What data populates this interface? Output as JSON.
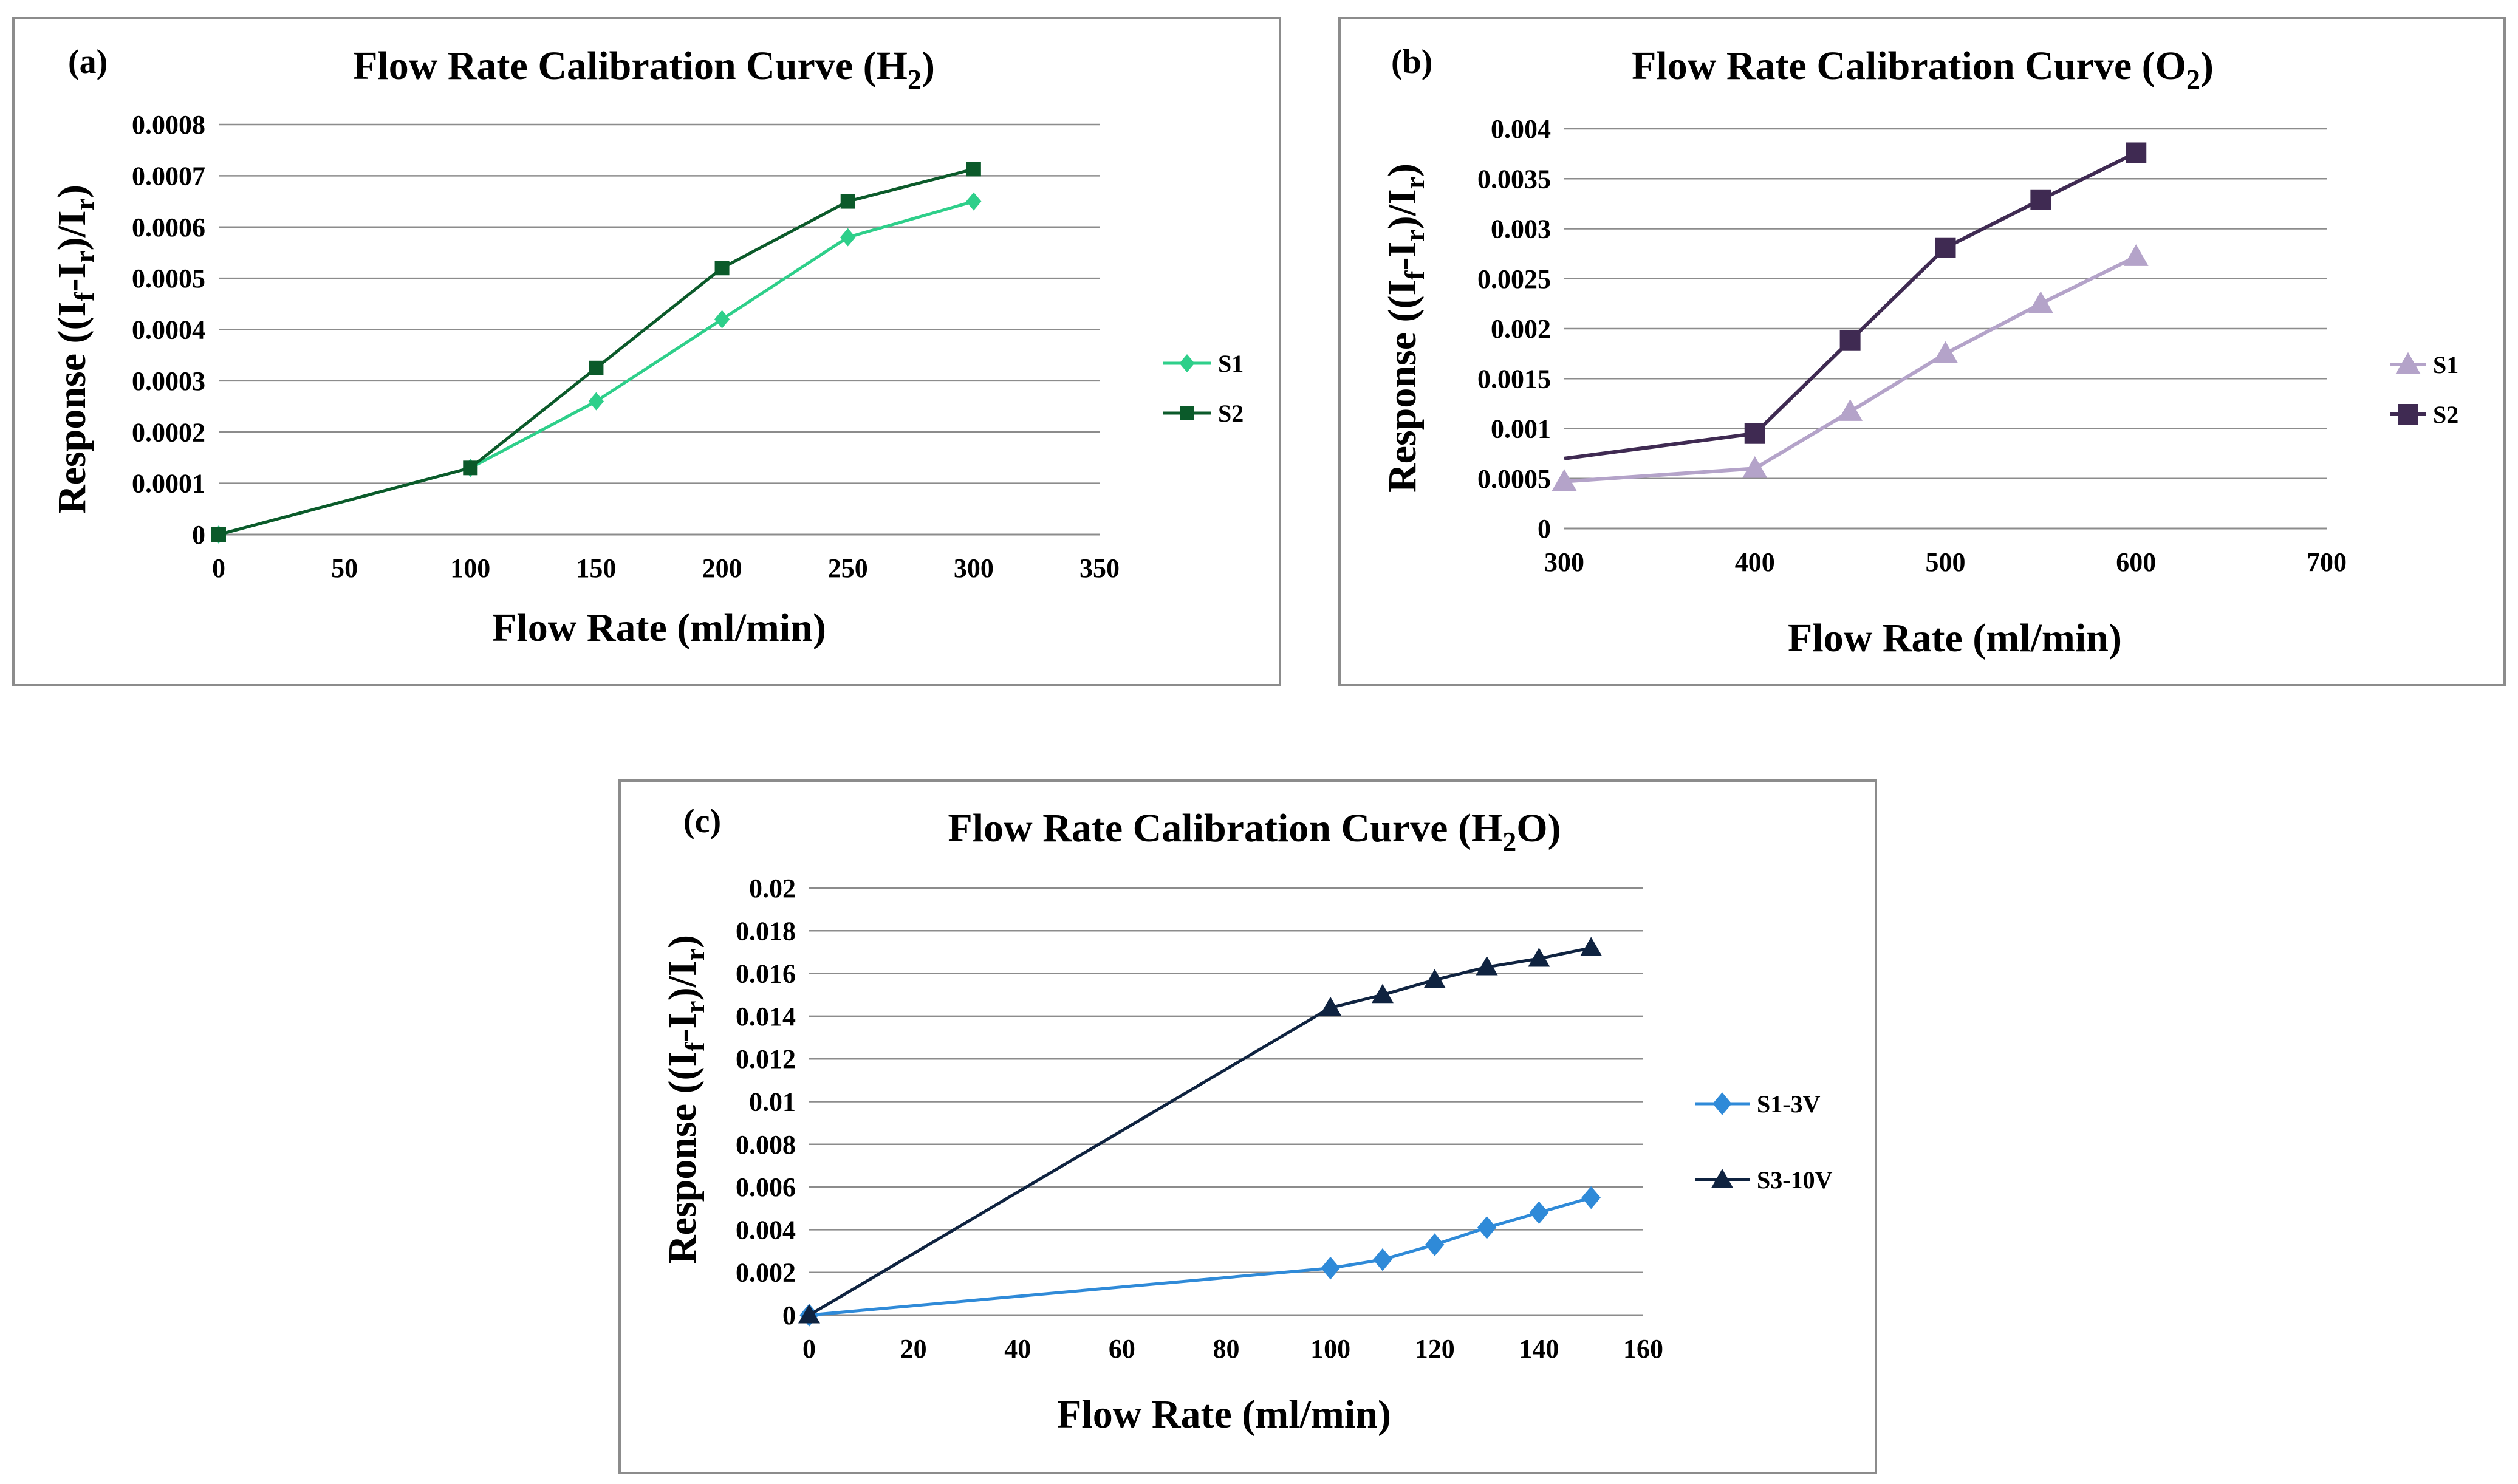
{
  "chart_data": [
    {
      "id": "a",
      "type": "line",
      "panel_label": "(a)",
      "title": "Flow Rate Calibration Curve (H",
      "title_sub": "2",
      "title_end": ")",
      "xlabel": "Flow Rate (ml/min)",
      "ylabel": {
        "pre": "Response ((I",
        "s1": "f",
        "mid": "-I",
        "s2": "r",
        "mid2": ")/I",
        "s3": "r",
        "end": ")"
      },
      "xlim": [
        0,
        350
      ],
      "ylim": [
        0,
        0.0008
      ],
      "xticks": [
        0,
        50,
        100,
        150,
        200,
        250,
        300,
        350
      ],
      "xtick_labels": [
        "0",
        "50",
        "100",
        "150",
        "200",
        "250",
        "300",
        "350"
      ],
      "yticks": [
        0,
        0.0001,
        0.0002,
        0.0003,
        0.0004,
        0.0005,
        0.0006,
        0.0007,
        0.0008
      ],
      "ytick_labels": [
        "0",
        "0.0001",
        "0.0002",
        "0.0003",
        "0.0004",
        "0.0005",
        "0.0006",
        "0.0007",
        "0.0008"
      ],
      "grid": true,
      "legend_position": "right",
      "series": [
        {
          "name": "S1",
          "color": "#2ecf8a",
          "marker": "diamond",
          "x": [
            0,
            100,
            150,
            200,
            250,
            300
          ],
          "y": [
            0,
            0.00013,
            0.00026,
            0.00042,
            0.00058,
            0.00065
          ]
        },
        {
          "name": "S2",
          "color": "#0b5a2a",
          "marker": "square",
          "x": [
            0,
            100,
            150,
            200,
            250,
            300
          ],
          "y": [
            0,
            0.00013,
            0.000325,
            0.00052,
            0.00065,
            0.000713
          ]
        }
      ]
    },
    {
      "id": "b",
      "type": "line",
      "panel_label": "(b)",
      "title": "Flow Rate Calibration Curve (O",
      "title_sub": "2",
      "title_end": ")",
      "xlabel": "Flow Rate (ml/min)",
      "ylabel": {
        "pre": "Response ((I",
        "s1": "f",
        "mid": "-I",
        "s2": "r",
        "mid2": ")/I",
        "s3": "r",
        "end": ")"
      },
      "xlim": [
        300,
        700
      ],
      "ylim": [
        0,
        0.004
      ],
      "xticks": [
        300,
        400,
        500,
        600,
        700
      ],
      "xtick_labels": [
        "300",
        "400",
        "500",
        "600",
        "700"
      ],
      "yticks": [
        0,
        0.0005,
        0.001,
        0.0015,
        0.002,
        0.0025,
        0.003,
        0.0035,
        0.004
      ],
      "ytick_labels": [
        "0",
        "0.0005",
        "0.001",
        "0.0015",
        "0.002",
        "0.0025",
        "0.003",
        "0.0035",
        "0.004"
      ],
      "grid": true,
      "legend_position": "right",
      "series": [
        {
          "name": "S1",
          "color": "#b4a3c9",
          "marker": "triangle",
          "x": [
            300,
            400,
            450,
            500,
            550,
            600
          ],
          "y": [
            0.00047,
            0.0006,
            0.00117,
            0.00175,
            0.00225,
            0.00272
          ]
        },
        {
          "name": "S2",
          "color": "#3f2a52",
          "marker": "square",
          "x": [
            300,
            400,
            450,
            500,
            550,
            600
          ],
          "y": [
            0.0007,
            0.00095,
            0.00188,
            0.00281,
            0.00329,
            0.00376
          ],
          "marker_skip_first": true
        }
      ]
    },
    {
      "id": "c",
      "type": "line",
      "panel_label": "(c)",
      "title": "Flow Rate Calibration Curve (H",
      "title_sub": "2",
      "title_end": "O)",
      "xlabel": "Flow Rate (ml/min)",
      "ylabel": {
        "pre": "Response ((I",
        "s1": "f",
        "mid": "-I",
        "s2": "r",
        "mid2": ")/I",
        "s3": "r",
        "end": ")"
      },
      "xlim": [
        0,
        160
      ],
      "ylim": [
        0,
        0.02
      ],
      "xticks": [
        0,
        20,
        40,
        60,
        80,
        100,
        120,
        140,
        160
      ],
      "xtick_labels": [
        "0",
        "20",
        "40",
        "60",
        "80",
        "100",
        "120",
        "140",
        "160"
      ],
      "yticks": [
        0,
        0.002,
        0.004,
        0.006,
        0.008,
        0.01,
        0.012,
        0.014,
        0.016,
        0.018,
        0.02
      ],
      "ytick_labels": [
        "0",
        "0.002",
        "0.004",
        "0.006",
        "0.008",
        "0.01",
        "0.012",
        "0.014",
        "0.016",
        "0.018",
        "0.02"
      ],
      "grid": true,
      "legend_position": "right",
      "series": [
        {
          "name": "S1-3V",
          "color": "#2f8ad8",
          "marker": "diamond",
          "x": [
            0,
            100,
            110,
            120,
            130,
            140,
            150
          ],
          "y": [
            0,
            0.0022,
            0.0026,
            0.0033,
            0.0041,
            0.0048,
            0.0055
          ]
        },
        {
          "name": "S3-10V",
          "color": "#0f2340",
          "marker": "triangle",
          "x": [
            0,
            100,
            110,
            120,
            130,
            140,
            150
          ],
          "y": [
            0,
            0.0144,
            0.015,
            0.0157,
            0.0163,
            0.0167,
            0.0172
          ]
        }
      ]
    }
  ]
}
